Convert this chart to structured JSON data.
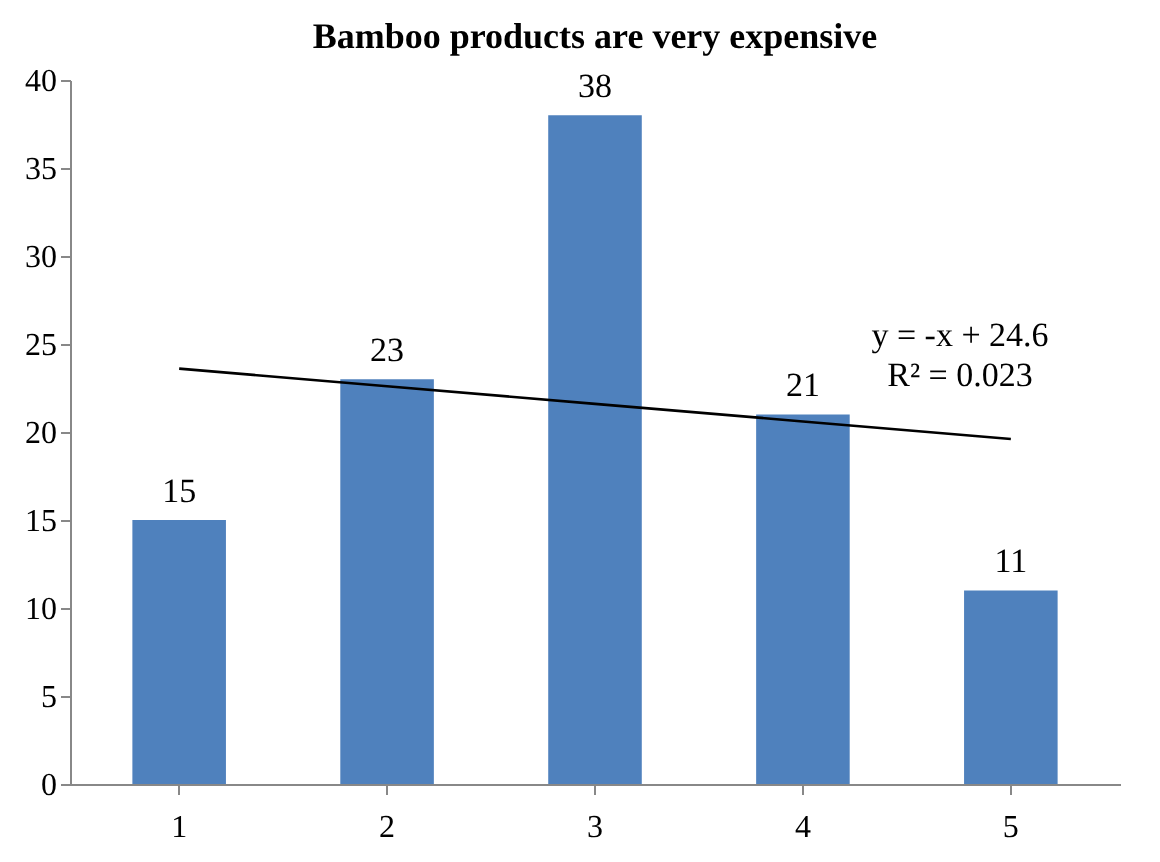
{
  "chart_data": {
    "type": "bar",
    "title": "Bamboo products are very expensive",
    "categories": [
      "1",
      "2",
      "3",
      "4",
      "5"
    ],
    "series": [
      {
        "color": "#4f81bd",
        "values": [
          15,
          23,
          38,
          21,
          11
        ],
        "value_labels": [
          "15",
          "23",
          "38",
          "21",
          "11"
        ]
      },
      {
        "type": "line",
        "color": "#000000",
        "values": [
          23.6,
          22.6,
          21.6,
          20.6,
          19.6
        ]
      }
    ],
    "ylim": [
      0,
      40
    ],
    "yticks": [
      0,
      5,
      10,
      15,
      20,
      25,
      30,
      35,
      40
    ],
    "grid": false,
    "legend": false,
    "annotations": [
      "y = -x + 24.6",
      "R² = 0.023"
    ]
  }
}
